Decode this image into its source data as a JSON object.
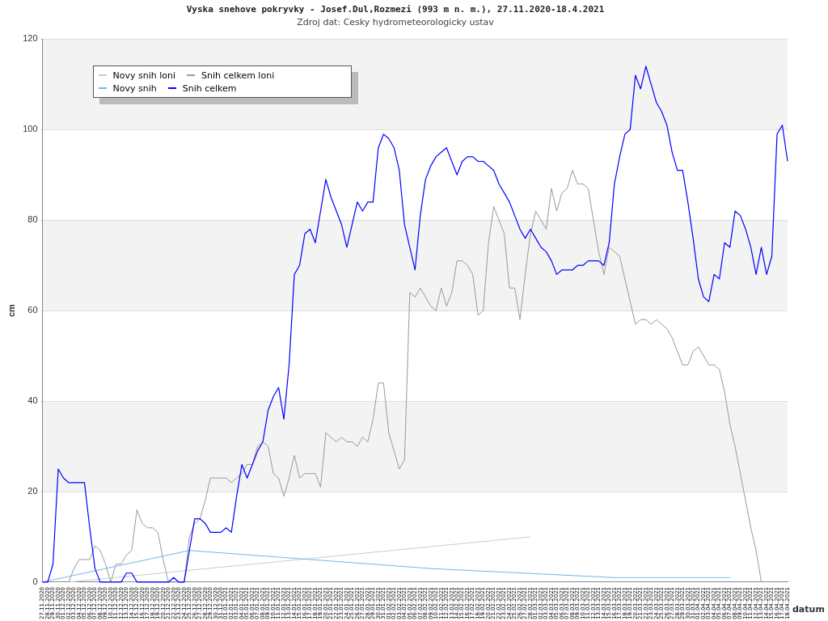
{
  "chart_data": {
    "type": "line",
    "title": "Vyska snehove pokryvky - Josef.Dul,Rozmezi (993 m n. m.), 27.11.2020-18.4.2021",
    "subtitle": "Zdroj dat: Cesky hydrometeorologicky ustav",
    "xlabel": "datum",
    "ylabel": "cm",
    "categories": [
      "27.11.2020",
      "28.11.2020",
      "29.11.2020",
      "30.11.2020",
      "01.12.2020",
      "02.12.2020",
      "03.12.2020",
      "04.12.2020",
      "05.12.2020",
      "06.12.2020",
      "07.12.2020",
      "08.12.2020",
      "09.12.2020",
      "10.12.2020",
      "11.12.2020",
      "12.12.2020",
      "13.12.2020",
      "14.12.2020",
      "15.12.2020",
      "16.12.2020",
      "17.12.2020",
      "18.12.2020",
      "19.12.2020",
      "20.12.2020",
      "21.12.2020",
      "22.12.2020",
      "23.12.2020",
      "24.12.2020",
      "25.12.2020",
      "26.12.2020",
      "27.12.2020",
      "28.12.2020",
      "29.12.2020",
      "30.12.2020",
      "31.12.2020",
      "01.01.2021",
      "02.01.2021",
      "03.01.2021",
      "04.01.2021",
      "05.01.2021",
      "06.01.2021",
      "07.01.2021",
      "08.01.2021",
      "09.01.2021",
      "10.01.2021",
      "11.01.2021",
      "12.01.2021",
      "13.01.2021",
      "14.01.2021",
      "15.01.2021",
      "16.01.2021",
      "17.01.2021",
      "18.01.2021",
      "19.01.2021",
      "20.01.2021",
      "21.01.2021",
      "22.01.2021",
      "23.01.2021",
      "24.01.2021",
      "25.01.2021",
      "26.01.2021",
      "27.01.2021",
      "28.01.2021",
      "29.01.2021",
      "30.01.2021",
      "31.01.2021",
      "01.02.2021",
      "02.02.2021",
      "03.02.2021",
      "04.02.2021",
      "05.02.2021",
      "06.02.2021",
      "07.02.2021",
      "08.02.2021",
      "09.02.2021",
      "10.02.2021",
      "11.02.2021",
      "12.02.2021",
      "13.02.2021",
      "14.02.2021",
      "15.02.2021",
      "16.02.2021",
      "17.02.2021",
      "18.02.2021",
      "19.02.2021",
      "20.02.2021",
      "21.02.2021",
      "22.02.2021",
      "23.02.2021",
      "24.02.2021",
      "25.02.2021",
      "26.02.2021",
      "27.02.2021",
      "28.02.2021",
      "01.03.2021",
      "02.03.2021",
      "03.03.2021",
      "04.03.2021",
      "05.03.2021",
      "06.03.2021",
      "07.03.2021",
      "08.03.2021",
      "09.03.2021",
      "10.03.2021",
      "11.03.2021",
      "12.03.2021",
      "13.03.2021",
      "14.03.2021",
      "15.03.2021",
      "16.03.2021",
      "17.03.2021",
      "18.03.2021",
      "19.03.2021",
      "20.03.2021",
      "21.03.2021",
      "22.03.2021",
      "23.03.2021",
      "24.03.2021",
      "25.03.2021",
      "26.03.2021",
      "27.03.2021",
      "28.03.2021",
      "29.03.2021",
      "30.03.2021",
      "31.03.2021",
      "01.04.2021",
      "02.04.2021",
      "03.04.2021",
      "04.04.2021",
      "05.04.2021",
      "06.04.2021",
      "07.04.2021",
      "08.04.2021",
      "09.04.2021",
      "10.04.2021",
      "11.04.2021",
      "12.04.2021",
      "13.04.2021",
      "14.04.2021",
      "15.04.2021",
      "16.04.2021",
      "17.04.2021",
      "18.04.2021"
    ],
    "series": [
      {
        "name": "Novy snih loni",
        "color": "#cccccc",
        "x": [
          "02.12.2020",
          "28.02.2021"
        ],
        "values": [
          0,
          10
        ]
      },
      {
        "name": "Snih celkem loni",
        "color": "#999999",
        "values": [
          null,
          null,
          null,
          null,
          null,
          0,
          3,
          5,
          5,
          5,
          8,
          7,
          4,
          0,
          4,
          4,
          6,
          7,
          16,
          13,
          12,
          12,
          11,
          5,
          0,
          0,
          0,
          0,
          10,
          13,
          14,
          18,
          23,
          23,
          23,
          23,
          22,
          23,
          24,
          26,
          26,
          30,
          31,
          30,
          24,
          23,
          19,
          23,
          28,
          23,
          24,
          24,
          24,
          21,
          33,
          32,
          31,
          32,
          31,
          31,
          30,
          32,
          31,
          36,
          44,
          44,
          33,
          29,
          25,
          27,
          64,
          63,
          65,
          63,
          61,
          60,
          65,
          61,
          64,
          71,
          71,
          70,
          68,
          59,
          60,
          75,
          83,
          80,
          77,
          65,
          65,
          58,
          68,
          77,
          82,
          80,
          78,
          87,
          82,
          86,
          87,
          91,
          88,
          88,
          87,
          80,
          73,
          68,
          74,
          73,
          72,
          67,
          62,
          57,
          58,
          58,
          57,
          58,
          57,
          56,
          54,
          51,
          48,
          48,
          51,
          52,
          50,
          48,
          48,
          47,
          42,
          35,
          30,
          24,
          18,
          12,
          7,
          0,
          null,
          null,
          null,
          null,
          null
        ]
      },
      {
        "name": "Novy snih",
        "color": "#70b8e8",
        "x": [
          "27.11.2020",
          "25.12.2020",
          "09.02.2021",
          "16.03.2021",
          "07.04.2021"
        ],
        "values": [
          0,
          7,
          3,
          1,
          1
        ]
      },
      {
        "name": "Snih celkem",
        "color": "#0000ff",
        "values": [
          0,
          0,
          4,
          25,
          23,
          22,
          22,
          22,
          22,
          12,
          3,
          0,
          0,
          0,
          0,
          0,
          2,
          2,
          0,
          0,
          0,
          0,
          0,
          0,
          0,
          1,
          0,
          0,
          7,
          14,
          14,
          13,
          11,
          11,
          11,
          12,
          11,
          19,
          26,
          23,
          26,
          29,
          31,
          38,
          41,
          43,
          36,
          48,
          68,
          70,
          77,
          78,
          75,
          82,
          89,
          85,
          82,
          79,
          74,
          79,
          84,
          82,
          84,
          84,
          96,
          99,
          98,
          96,
          91,
          79,
          74,
          69,
          81,
          89,
          92,
          94,
          95,
          96,
          93,
          90,
          93,
          94,
          94,
          93,
          93,
          92,
          91,
          88,
          86,
          84,
          81,
          78,
          76,
          78,
          76,
          74,
          73,
          71,
          68,
          69,
          69,
          69,
          70,
          70,
          71,
          71,
          71,
          70,
          75,
          88,
          94,
          99,
          100,
          112,
          109,
          114,
          110,
          106,
          104,
          101,
          95,
          91,
          91,
          84,
          76,
          67,
          63,
          62,
          68,
          67,
          75,
          74,
          82,
          81,
          78,
          74,
          68,
          74,
          68,
          72,
          99,
          101,
          93
        ]
      }
    ],
    "ylim": [
      0,
      120
    ],
    "yticks": [
      0,
      20,
      40,
      60,
      80,
      100,
      120
    ],
    "grid": "y",
    "legend": "top left",
    "marker": "none",
    "line_style": "solid"
  }
}
